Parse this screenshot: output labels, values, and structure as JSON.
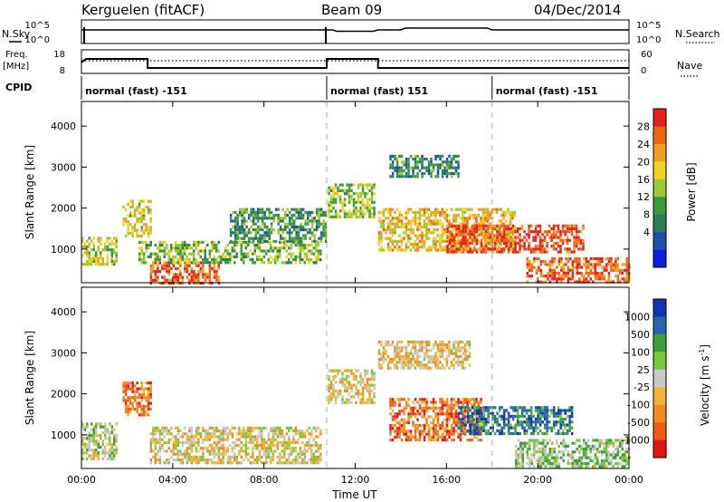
{
  "header": {
    "station": "Kerguelen (fitACF)",
    "beam": "Beam 09",
    "date": "04/Dec/2014"
  },
  "top_panels": {
    "nsky_label": "N.Sky",
    "nsearch_label": "N.Search",
    "freq_label_line1": "Freq.",
    "freq_label_line2": "[MHz]",
    "nave_label": "Nave",
    "cpid_label": "CPID",
    "count_ticks": [
      "10^5",
      "10^0"
    ],
    "freq_ticks": [
      "18",
      "8"
    ],
    "nave_ticks": [
      "60",
      "0"
    ],
    "cpid_segments": [
      {
        "label": "normal (fast) -151",
        "start_h": 0,
        "end_h": 10.75
      },
      {
        "label": "normal (fast) 151",
        "start_h": 10.75,
        "end_h": 18
      },
      {
        "label": "normal (fast) -151",
        "start_h": 18,
        "end_h": 24
      }
    ]
  },
  "colors": {
    "power": [
      "#0a1ee6",
      "#1e50aa",
      "#2a7d5a",
      "#3c9a3c",
      "#a0c832",
      "#f0d21e",
      "#f0a01e",
      "#f06414",
      "#e61e1e"
    ],
    "velocity": [
      "#e61414",
      "#f05a14",
      "#f08c1e",
      "#f0b432",
      "#c8c8c8",
      "#78c83c",
      "#3ca03c",
      "#2864b4",
      "#1432b4"
    ]
  },
  "chart_data": [
    {
      "type": "heatmap",
      "title": "",
      "xlabel": "Time UT",
      "ylabel": "Slant Range [km]",
      "x_ticks": [
        "00:00",
        "04:00",
        "08:00",
        "12:00",
        "16:00",
        "20:00",
        "00:00"
      ],
      "xlim_hours": [
        0,
        24
      ],
      "y_ticks": [
        1000,
        2000,
        3000,
        4000
      ],
      "ylim": [
        180,
        4600
      ],
      "colorbar": {
        "label": "Power [dB]",
        "ticks": [
          "28",
          "24",
          "20",
          "16",
          "12",
          "8",
          "4"
        ],
        "range": [
          0,
          32
        ]
      },
      "echo_regions": [
        {
          "t0": 0.0,
          "t1": 1.5,
          "r0": 600,
          "r1": 1300,
          "level": 0.55
        },
        {
          "t0": 1.8,
          "t1": 3.0,
          "r0": 1300,
          "r1": 2200,
          "level": 0.6
        },
        {
          "t0": 3.0,
          "t1": 6.0,
          "r0": 180,
          "r1": 700,
          "level": 0.85
        },
        {
          "t0": 2.5,
          "t1": 10.5,
          "r0": 700,
          "r1": 1200,
          "level": 0.45
        },
        {
          "t0": 6.5,
          "t1": 10.7,
          "r0": 1200,
          "r1": 2000,
          "level": 0.35
        },
        {
          "t0": 10.8,
          "t1": 12.8,
          "r0": 1800,
          "r1": 2600,
          "level": 0.5
        },
        {
          "t0": 13.0,
          "t1": 19.0,
          "r0": 1000,
          "r1": 2000,
          "level": 0.65
        },
        {
          "t0": 16.0,
          "t1": 22.0,
          "r0": 900,
          "r1": 1600,
          "level": 0.9
        },
        {
          "t0": 19.5,
          "t1": 24.0,
          "r0": 180,
          "r1": 800,
          "level": 0.85
        },
        {
          "t0": 13.5,
          "t1": 16.5,
          "r0": 2800,
          "r1": 3300,
          "level": 0.3
        }
      ]
    },
    {
      "type": "heatmap",
      "title": "",
      "xlabel": "Time UT",
      "ylabel": "Slant Range [km]",
      "x_ticks": [
        "00:00",
        "04:00",
        "08:00",
        "12:00",
        "16:00",
        "20:00",
        "00:00"
      ],
      "xlim_hours": [
        0,
        24
      ],
      "y_ticks": [
        1000,
        2000,
        3000,
        4000
      ],
      "ylim": [
        180,
        4600
      ],
      "colorbar": {
        "label": "Velocity [m s",
        "label_sup": "-1",
        "label_end": "]",
        "ticks": [
          "1000",
          "500",
          "100",
          "25",
          "-25",
          "-100",
          "-500",
          "-1000"
        ]
      },
      "echo_regions": [
        {
          "t0": 0.0,
          "t1": 1.5,
          "r0": 400,
          "r1": 1300,
          "level": 0.55
        },
        {
          "t0": 1.8,
          "t1": 3.0,
          "r0": 1500,
          "r1": 2300,
          "level": 0.2
        },
        {
          "t0": 3.0,
          "t1": 10.5,
          "r0": 300,
          "r1": 1200,
          "level": 0.45
        },
        {
          "t0": 10.8,
          "t1": 12.8,
          "r0": 1800,
          "r1": 2600,
          "level": 0.45
        },
        {
          "t0": 13.5,
          "t1": 17.5,
          "r0": 900,
          "r1": 1900,
          "level": 0.2
        },
        {
          "t0": 16.5,
          "t1": 21.5,
          "r0": 1000,
          "r1": 1700,
          "level": 0.82
        },
        {
          "t0": 19.0,
          "t1": 24.0,
          "r0": 200,
          "r1": 900,
          "level": 0.6
        },
        {
          "t0": 13.0,
          "t1": 17.0,
          "r0": 2600,
          "r1": 3300,
          "level": 0.42
        }
      ]
    }
  ]
}
